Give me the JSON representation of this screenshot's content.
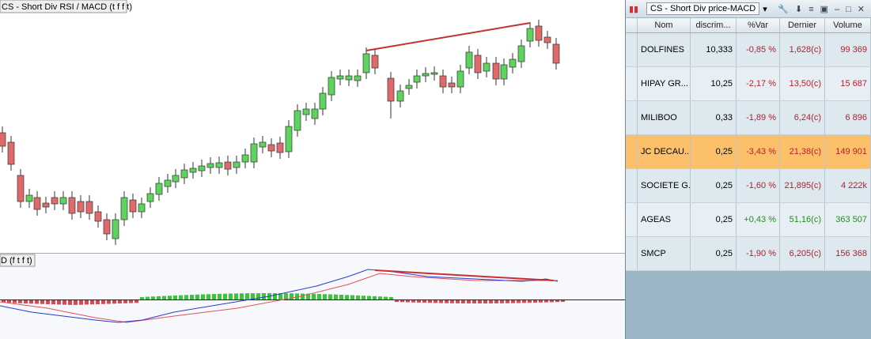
{
  "chart_panel": {
    "title": "CS - Short Div RSI / MACD (t f f t)",
    "macd_title": "D (f t f t)"
  },
  "watchlist": {
    "title": "CS - Short Div price-MACD",
    "columns": [
      "Nom",
      "discrim...",
      "%Var",
      "Dernier",
      "Volume"
    ],
    "highlighted_row": 3,
    "rows": [
      [
        "DOLFINES",
        "10,333",
        "-0,85 %",
        "1,628(c)",
        "99 369"
      ],
      [
        "HIPAY GR...",
        "10,25",
        "-2,17 %",
        "13,50(c)",
        "15 687"
      ],
      [
        "MILIBOO",
        "0,33",
        "-1,89 %",
        "6,24(c)",
        "6 896"
      ],
      [
        "JC DECAU...",
        "0,25",
        "-3,43 %",
        "21,38(c)",
        "149 901"
      ],
      [
        "SOCIETE G...",
        "0,25",
        "-1,60 %",
        "21,895(c)",
        "4 222k"
      ],
      [
        "AGEAS",
        "0,25",
        "+0,43 %",
        "51,16(c)",
        "363 507"
      ],
      [
        "SMCP",
        "0,25",
        "-1,90 %",
        "6,205(c)",
        "156 368"
      ]
    ]
  }
}
